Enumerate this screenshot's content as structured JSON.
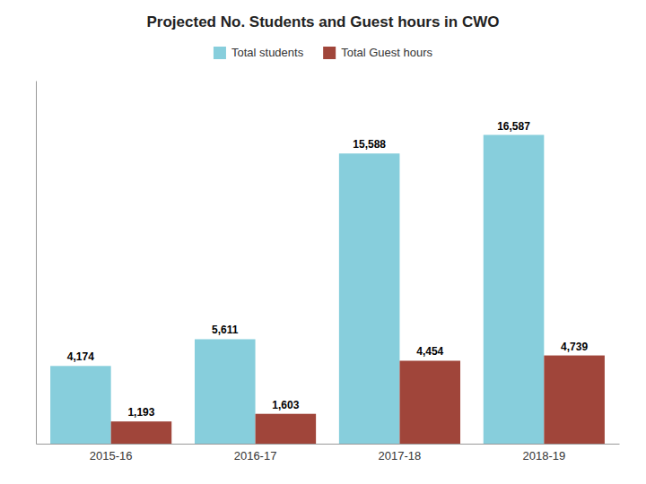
{
  "chart_data": {
    "type": "bar",
    "title": "Projected No. Students and Guest hours in CWO",
    "categories": [
      "2015-16",
      "2016-17",
      "2017-18",
      "2018-19"
    ],
    "series": [
      {
        "name": "Total students",
        "color": "#87CEDC",
        "values": [
          4174,
          5611,
          15588,
          16587
        ],
        "value_labels": [
          "4,174",
          "5,611",
          "15,588",
          "16,587"
        ]
      },
      {
        "name": "Total Guest hours",
        "color": "#A0453A",
        "values": [
          1193,
          1603,
          4454,
          4739
        ],
        "value_labels": [
          "1,193",
          "1,603",
          "4,454",
          "4,739"
        ]
      }
    ],
    "ylim": [
      0,
      19500
    ],
    "grid": false,
    "legend": "top",
    "data_labels": true,
    "tick_labels": "x"
  }
}
